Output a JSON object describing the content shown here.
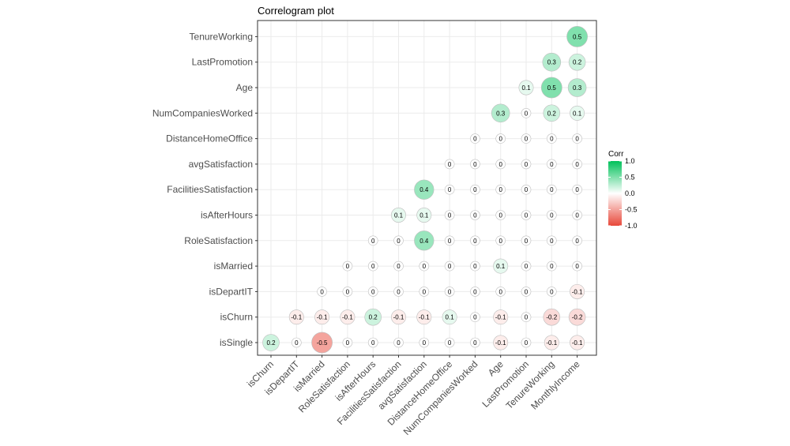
{
  "chart_data": {
    "type": "heatmap",
    "title": "Correlogram plot",
    "x_categories": [
      "isChurn",
      "isDepartIT",
      "isMarried",
      "RoleSatisfaction",
      "isAfterHours",
      "FacilitiesSatisfaction",
      "avgSatisfaction",
      "DistanceHomeOffice",
      "NumCompaniesWorked",
      "Age",
      "LastPromotion",
      "TenureWorking",
      "MonthlyIncome"
    ],
    "y_categories": [
      "isSingle",
      "isChurn",
      "isDepartIT",
      "isMarried",
      "RoleSatisfaction",
      "isAfterHours",
      "FacilitiesSatisfaction",
      "avgSatisfaction",
      "DistanceHomeOffice",
      "NumCompaniesWorked",
      "Age",
      "LastPromotion",
      "TenureWorking"
    ],
    "rows": [
      [
        "0.2",
        "0",
        "-0.5",
        "0",
        "0",
        "0",
        "0",
        "0",
        "0",
        "-0.1",
        "0",
        "-0.1",
        "-0.1"
      ],
      [
        null,
        "-0.1",
        "-0.1",
        "-0.1",
        "0.2",
        "-0.1",
        "-0.1",
        "0.1",
        "0",
        "-0.1",
        "0",
        "-0.2",
        "-0.2"
      ],
      [
        null,
        null,
        "0",
        "0",
        "0",
        "0",
        "0",
        "0",
        "0",
        "0",
        "0",
        "0",
        "-0.1"
      ],
      [
        null,
        null,
        null,
        "0",
        "0",
        "0",
        "0",
        "0",
        "0",
        "0.1",
        "0",
        "0",
        "0"
      ],
      [
        null,
        null,
        null,
        null,
        "0",
        "0",
        "0.4",
        "0",
        "0",
        "0",
        "0",
        "0",
        "0"
      ],
      [
        null,
        null,
        null,
        null,
        null,
        "0.1",
        "0.1",
        "0",
        "0",
        "0",
        "0",
        "0",
        "0"
      ],
      [
        null,
        null,
        null,
        null,
        null,
        null,
        "0.4",
        "0",
        "0",
        "0",
        "0",
        "0",
        "0"
      ],
      [
        null,
        null,
        null,
        null,
        null,
        null,
        null,
        "0",
        "0",
        "0",
        "0",
        "0",
        "0"
      ],
      [
        null,
        null,
        null,
        null,
        null,
        null,
        null,
        null,
        "0",
        "0",
        "0",
        "0",
        "0"
      ],
      [
        null,
        null,
        null,
        null,
        null,
        null,
        null,
        null,
        null,
        "0.3",
        "0",
        "0.2",
        "0.1"
      ],
      [
        null,
        null,
        null,
        null,
        null,
        null,
        null,
        null,
        null,
        null,
        "0.1",
        "0.5",
        "0.3"
      ],
      [
        null,
        null,
        null,
        null,
        null,
        null,
        null,
        null,
        null,
        null,
        null,
        "0.3",
        "0.2"
      ],
      [
        null,
        null,
        null,
        null,
        null,
        null,
        null,
        null,
        null,
        null,
        null,
        null,
        "0.5"
      ]
    ],
    "legend": {
      "title": "Corr",
      "ticks": [
        "1.0",
        "0.5",
        "0.0",
        "-0.5",
        "-1.0"
      ],
      "range": [
        -1,
        1
      ],
      "position": "right"
    },
    "colors": {
      "low": "#E8483A",
      "mid": "#FFFFFF",
      "high": "#00C15A"
    },
    "grid": true
  }
}
